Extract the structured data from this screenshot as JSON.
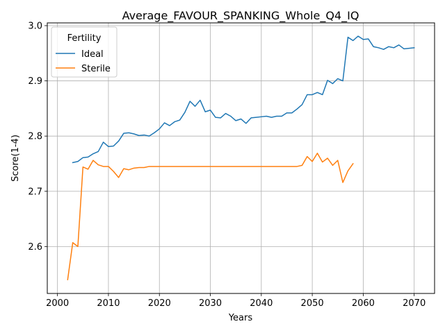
{
  "chart_data": {
    "type": "line",
    "title": "Average_FAVOUR_SPANKING_Whole_Q4_IQ",
    "xlabel": "Years",
    "ylabel": "Score(1-4)",
    "xlim": [
      1998,
      2074
    ],
    "ylim": [
      2.515,
      3.005
    ],
    "xticks": [
      2000,
      2010,
      2020,
      2030,
      2040,
      2050,
      2060,
      2070
    ],
    "yticks": [
      2.6,
      2.7,
      2.8,
      2.9,
      3.0
    ],
    "ytick_labels": [
      "2.6",
      "2.7",
      "2.8",
      "2.9",
      "3.0"
    ],
    "grid": true,
    "legend": {
      "title": "Fertility",
      "position": "top-left"
    },
    "series": [
      {
        "name": "Ideal",
        "color": "#1f77b4",
        "points": [
          [
            2003,
            2.752
          ],
          [
            2004,
            2.754
          ],
          [
            2005,
            2.761
          ],
          [
            2006,
            2.762
          ],
          [
            2007,
            2.768
          ],
          [
            2008,
            2.772
          ],
          [
            2009,
            2.789
          ],
          [
            2010,
            2.781
          ],
          [
            2011,
            2.782
          ],
          [
            2012,
            2.791
          ],
          [
            2013,
            2.805
          ],
          [
            2014,
            2.806
          ],
          [
            2015,
            2.804
          ],
          [
            2016,
            2.801
          ],
          [
            2017,
            2.802
          ],
          [
            2018,
            2.8
          ],
          [
            2019,
            2.806
          ],
          [
            2020,
            2.813
          ],
          [
            2021,
            2.824
          ],
          [
            2022,
            2.819
          ],
          [
            2023,
            2.826
          ],
          [
            2024,
            2.829
          ],
          [
            2025,
            2.843
          ],
          [
            2026,
            2.863
          ],
          [
            2027,
            2.854
          ],
          [
            2028,
            2.865
          ],
          [
            2029,
            2.844
          ],
          [
            2030,
            2.847
          ],
          [
            2031,
            2.834
          ],
          [
            2032,
            2.833
          ],
          [
            2033,
            2.841
          ],
          [
            2034,
            2.836
          ],
          [
            2035,
            2.828
          ],
          [
            2036,
            2.831
          ],
          [
            2037,
            2.823
          ],
          [
            2038,
            2.833
          ],
          [
            2039,
            2.834
          ],
          [
            2040,
            2.835
          ],
          [
            2041,
            2.836
          ],
          [
            2042,
            2.834
          ],
          [
            2043,
            2.836
          ],
          [
            2044,
            2.836
          ],
          [
            2045,
            2.842
          ],
          [
            2046,
            2.842
          ],
          [
            2047,
            2.849
          ],
          [
            2048,
            2.857
          ],
          [
            2049,
            2.875
          ],
          [
            2050,
            2.875
          ],
          [
            2051,
            2.879
          ],
          [
            2052,
            2.875
          ],
          [
            2053,
            2.901
          ],
          [
            2054,
            2.895
          ],
          [
            2055,
            2.904
          ],
          [
            2056,
            2.9
          ],
          [
            2057,
            2.979
          ],
          [
            2058,
            2.973
          ],
          [
            2059,
            2.981
          ],
          [
            2060,
            2.975
          ],
          [
            2061,
            2.976
          ],
          [
            2062,
            2.962
          ],
          [
            2063,
            2.96
          ],
          [
            2064,
            2.957
          ],
          [
            2065,
            2.962
          ],
          [
            2066,
            2.96
          ],
          [
            2067,
            2.965
          ],
          [
            2068,
            2.958
          ],
          [
            2069,
            2.959
          ],
          [
            2070,
            2.96
          ]
        ]
      },
      {
        "name": "Sterile",
        "color": "#ff7f0e",
        "points": [
          [
            2002,
            2.54
          ],
          [
            2003,
            2.607
          ],
          [
            2004,
            2.6
          ],
          [
            2005,
            2.744
          ],
          [
            2006,
            2.74
          ],
          [
            2007,
            2.756
          ],
          [
            2008,
            2.748
          ],
          [
            2009,
            2.745
          ],
          [
            2010,
            2.745
          ],
          [
            2011,
            2.736
          ],
          [
            2012,
            2.725
          ],
          [
            2013,
            2.741
          ],
          [
            2014,
            2.739
          ],
          [
            2015,
            2.742
          ],
          [
            2016,
            2.743
          ],
          [
            2017,
            2.743
          ],
          [
            2018,
            2.745
          ],
          [
            2019,
            2.745
          ],
          [
            2020,
            2.745
          ],
          [
            2021,
            2.745
          ],
          [
            2022,
            2.745
          ],
          [
            2023,
            2.745
          ],
          [
            2024,
            2.745
          ],
          [
            2025,
            2.745
          ],
          [
            2026,
            2.745
          ],
          [
            2027,
            2.745
          ],
          [
            2028,
            2.745
          ],
          [
            2029,
            2.745
          ],
          [
            2030,
            2.745
          ],
          [
            2031,
            2.745
          ],
          [
            2032,
            2.745
          ],
          [
            2033,
            2.745
          ],
          [
            2034,
            2.745
          ],
          [
            2035,
            2.745
          ],
          [
            2036,
            2.745
          ],
          [
            2037,
            2.745
          ],
          [
            2038,
            2.745
          ],
          [
            2039,
            2.745
          ],
          [
            2040,
            2.745
          ],
          [
            2041,
            2.745
          ],
          [
            2042,
            2.745
          ],
          [
            2043,
            2.745
          ],
          [
            2044,
            2.745
          ],
          [
            2045,
            2.745
          ],
          [
            2046,
            2.745
          ],
          [
            2047,
            2.745
          ],
          [
            2048,
            2.747
          ],
          [
            2049,
            2.763
          ],
          [
            2050,
            2.754
          ],
          [
            2051,
            2.769
          ],
          [
            2052,
            2.753
          ],
          [
            2053,
            2.76
          ],
          [
            2054,
            2.747
          ],
          [
            2055,
            2.756
          ],
          [
            2056,
            2.716
          ],
          [
            2057,
            2.737
          ],
          [
            2058,
            2.75
          ]
        ]
      }
    ]
  }
}
